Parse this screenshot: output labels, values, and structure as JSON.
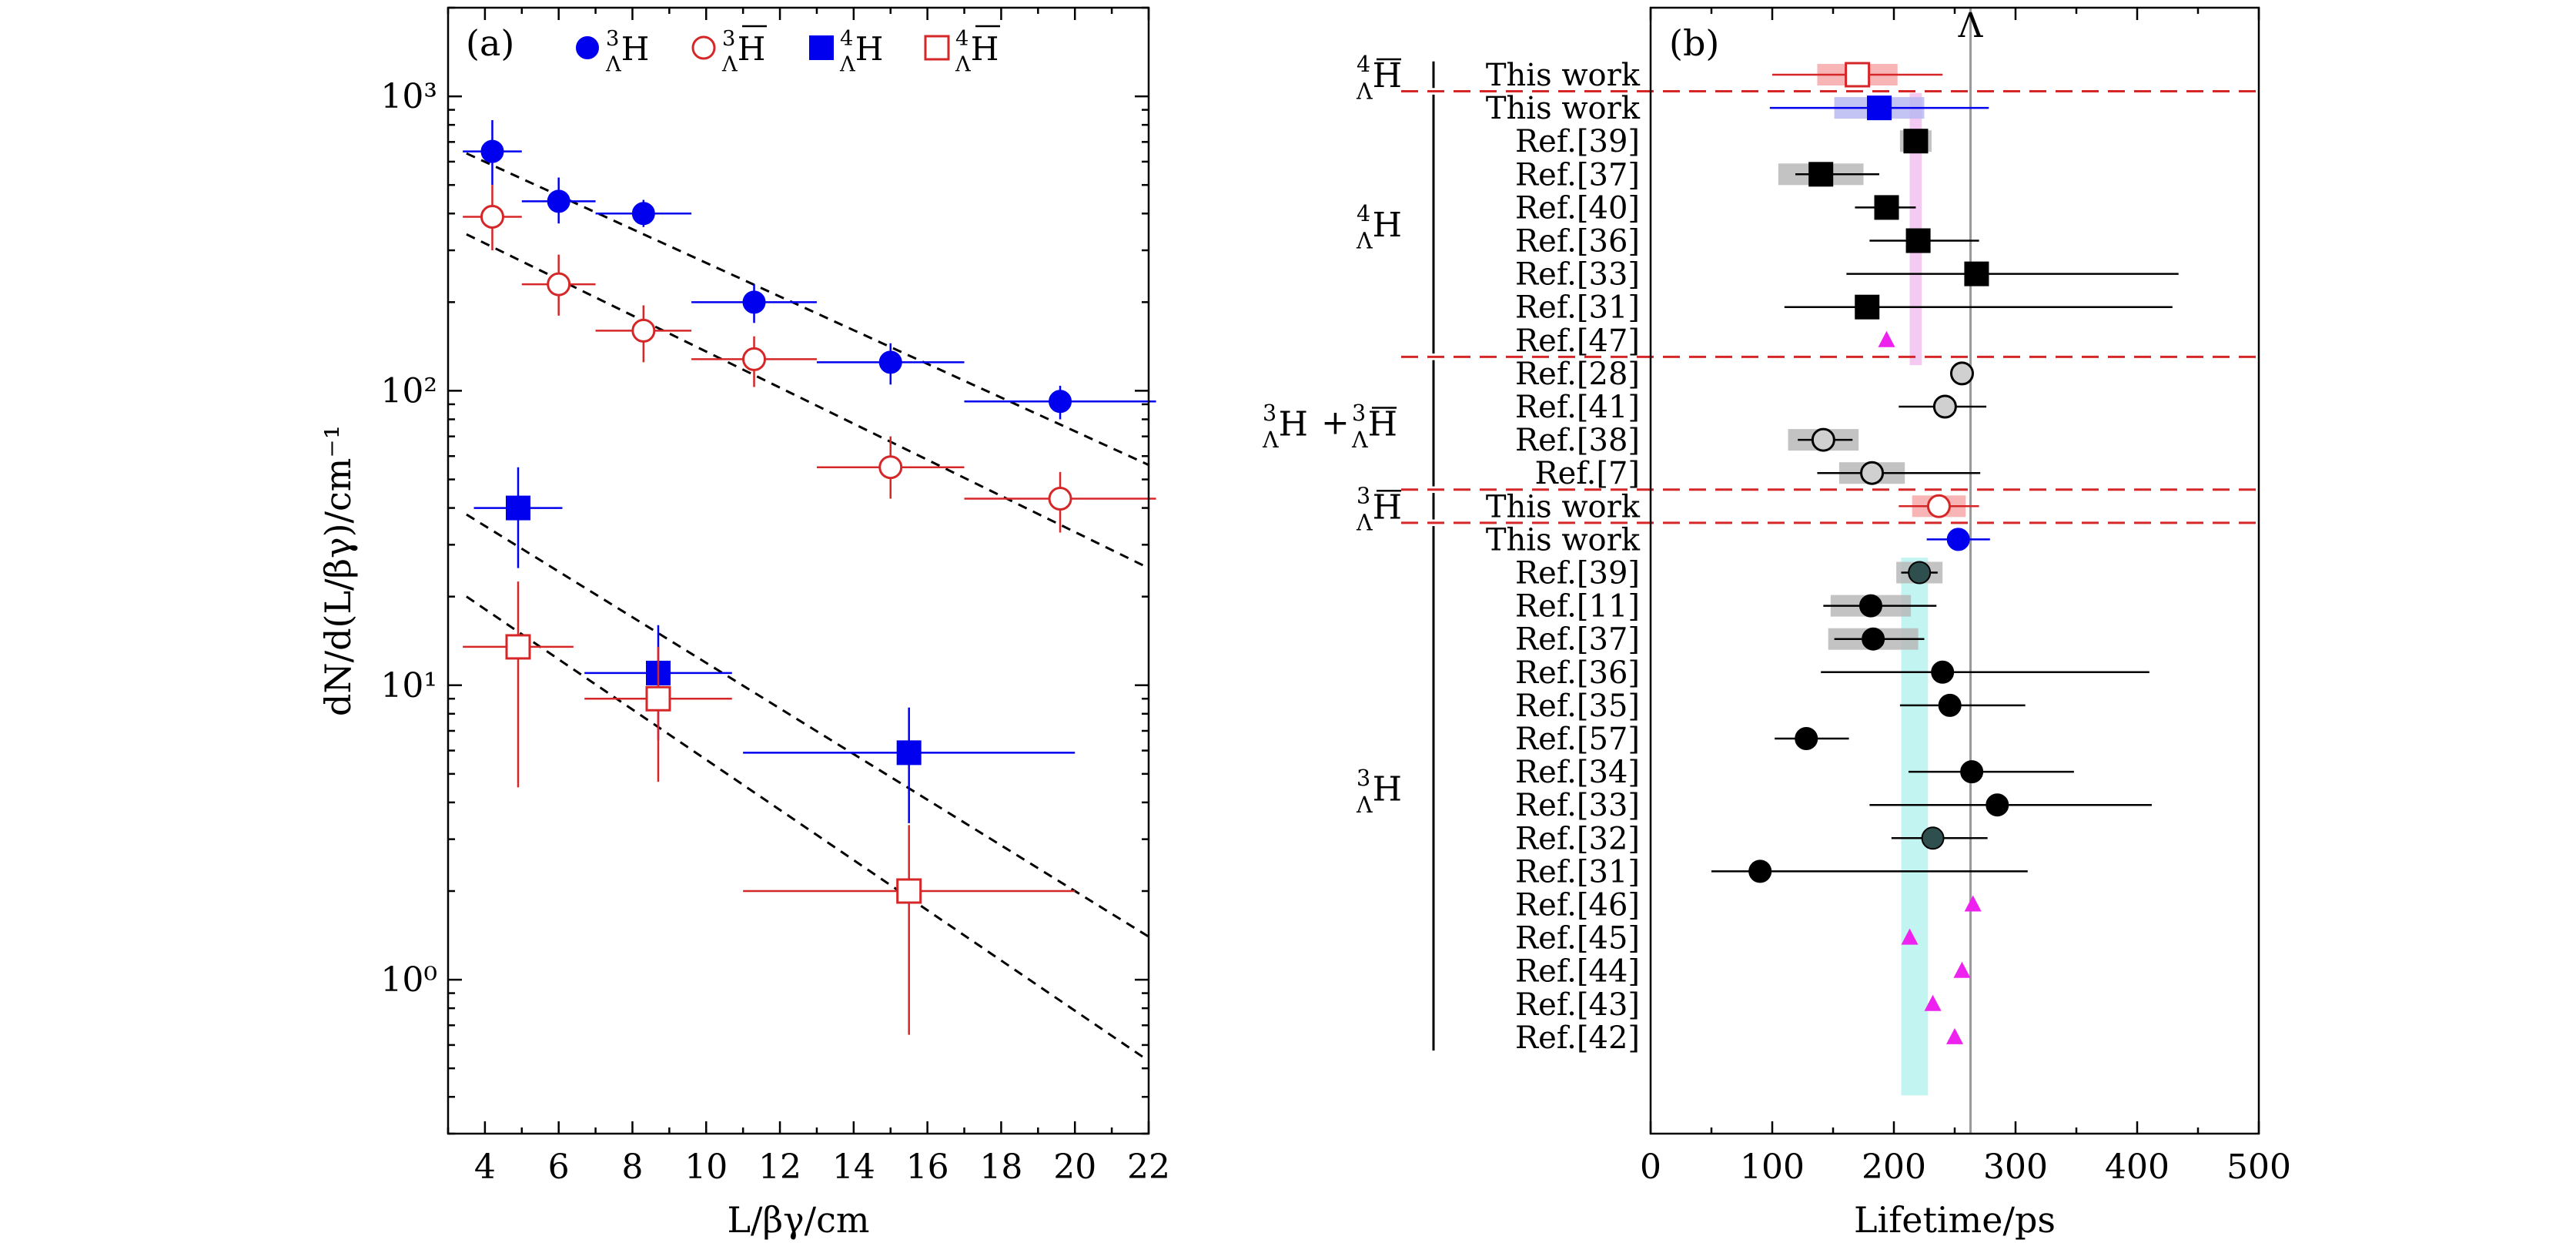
{
  "colors": {
    "h3": "#0000ee",
    "h3bar": "#d62728",
    "h4": "#0000ee",
    "h4bar": "#d62728",
    "ref": "#000000",
    "theory": "#ee22ee",
    "separator": "#d62728",
    "lambda_line": "#999999",
    "band_h3": "#aef2ee",
    "band_h4": "#f2b8ee"
  },
  "chart_data": [
    {
      "panel": "(a)",
      "type": "scatter",
      "xlabel": "L/βγ/cm",
      "ylabel": "dN/d(L/βγ)/cm⁻¹",
      "yscale": "log",
      "xlim": [
        3,
        22
      ],
      "ylim": [
        0.3,
        2000
      ],
      "xticks": [
        4,
        6,
        8,
        10,
        12,
        14,
        16,
        18,
        20,
        22
      ],
      "yticks": [
        {
          "value": 1,
          "label": "10⁰"
        },
        {
          "value": 10,
          "label": "10¹"
        },
        {
          "value": 100,
          "label": "10²"
        },
        {
          "value": 1000,
          "label": "10³"
        }
      ],
      "legend": {
        "position": "top",
        "entries": [
          {
            "key": "h3",
            "label": "ΛH",
            "sup": "3",
            "sub": "Λ",
            "base": "H",
            "bar": false,
            "marker": "filled-circle"
          },
          {
            "key": "h3bar",
            "label": "ΛH̄",
            "sup": "3",
            "sub": "Λ",
            "base": "H",
            "bar": true,
            "marker": "open-circle"
          },
          {
            "key": "h4",
            "label": "ΛH",
            "sup": "4",
            "sub": "Λ",
            "base": "H",
            "bar": false,
            "marker": "filled-square"
          },
          {
            "key": "h4bar",
            "label": "ΛH̄",
            "sup": "4",
            "sub": "Λ",
            "base": "H",
            "bar": true,
            "marker": "open-square"
          }
        ]
      },
      "series": [
        {
          "name": "3H_Lambda",
          "key": "h3",
          "marker": "filled-circle",
          "points": [
            {
              "x": 4.2,
              "y": 650,
              "xerr": 0.8,
              "yerr_lo": 150,
              "yerr_hi": 180
            },
            {
              "x": 6.0,
              "y": 440,
              "xerr": 1.0,
              "yerr_lo": 70,
              "yerr_hi": 90
            },
            {
              "x": 8.3,
              "y": 400,
              "xerr": 1.3,
              "yerr_lo": 40,
              "yerr_hi": 45
            },
            {
              "x": 11.3,
              "y": 200,
              "xerr": 1.7,
              "yerr_lo": 30,
              "yerr_hi": 30
            },
            {
              "x": 15.0,
              "y": 125,
              "xerr": 2.0,
              "yerr_lo": 20,
              "yerr_hi": 20
            },
            {
              "x": 19.6,
              "y": 92,
              "xerr": 2.6,
              "yerr_lo": 12,
              "yerr_hi": 12
            }
          ]
        },
        {
          "name": "anti-3H_Lambda",
          "key": "h3bar",
          "marker": "open-circle",
          "points": [
            {
              "x": 4.2,
              "y": 390,
              "xerr": 0.8,
              "yerr_lo": 90,
              "yerr_hi": 110
            },
            {
              "x": 6.0,
              "y": 230,
              "xerr": 1.0,
              "yerr_lo": 50,
              "yerr_hi": 60
            },
            {
              "x": 8.3,
              "y": 160,
              "xerr": 1.3,
              "yerr_lo": 35,
              "yerr_hi": 35
            },
            {
              "x": 11.3,
              "y": 128,
              "xerr": 1.7,
              "yerr_lo": 25,
              "yerr_hi": 25
            },
            {
              "x": 15.0,
              "y": 55,
              "xerr": 2.0,
              "yerr_lo": 12,
              "yerr_hi": 15
            },
            {
              "x": 19.6,
              "y": 43,
              "xerr": 2.6,
              "yerr_lo": 10,
              "yerr_hi": 10
            }
          ]
        },
        {
          "name": "4H_Lambda",
          "key": "h4",
          "marker": "filled-square",
          "points": [
            {
              "x": 4.9,
              "y": 40,
              "xerr": 1.2,
              "yerr_lo": 15,
              "yerr_hi": 15
            },
            {
              "x": 8.7,
              "y": 11,
              "xerr": 2.0,
              "yerr_lo": 4.5,
              "yerr_hi": 5
            },
            {
              "x": 15.5,
              "y": 5.9,
              "xerr": 4.5,
              "yerr_lo": 2.5,
              "yerr_hi": 2.5
            }
          ]
        },
        {
          "name": "anti-4H_Lambda",
          "key": "h4bar",
          "marker": "open-square",
          "points": [
            {
              "x": 4.9,
              "y": 13.5,
              "xerr": 1.5,
              "yerr_lo": 9,
              "yerr_hi": 9
            },
            {
              "x": 8.7,
              "y": 9,
              "xerr": 2.0,
              "yerr_lo": 4.3,
              "yerr_hi": 4.5
            },
            {
              "x": 15.5,
              "y": 2.0,
              "xerr": 4.5,
              "yerr_lo": 1.35,
              "yerr_hi": 1.35
            }
          ]
        }
      ],
      "fits": [
        {
          "x": [
            3.5,
            22
          ],
          "y": [
            640,
            56
          ]
        },
        {
          "x": [
            3.5,
            22
          ],
          "y": [
            340,
            25
          ]
        },
        {
          "x": [
            3.5,
            22
          ],
          "y": [
            38,
            1.4
          ]
        },
        {
          "x": [
            3.5,
            22
          ],
          "y": [
            20,
            0.53
          ]
        }
      ]
    },
    {
      "panel": "(b)",
      "type": "scatter",
      "xlabel": "Lifetime/ps",
      "xlim": [
        0,
        500
      ],
      "xticks": [
        0,
        100,
        200,
        300,
        400,
        500
      ],
      "lambda_lifetime": 263,
      "lambda_label": "Λ",
      "bands": [
        {
          "key": "band_h3",
          "from": 206,
          "to": 228,
          "rows": [
            15,
            31
          ]
        },
        {
          "key": "band_h4",
          "from": 213,
          "to": 223,
          "rows": [
            1,
            9
          ]
        }
      ],
      "groups": [
        {
          "label_sup": "4",
          "label_sub": "Λ",
          "label_base": "H",
          "bar": true,
          "rows": [
            0,
            0
          ]
        },
        {
          "label_sup": "4",
          "label_sub": "Λ",
          "label_base": "H",
          "bar": false,
          "rows": [
            1,
            8
          ]
        },
        {
          "label_sup": "3",
          "label_sub": "Λ",
          "label_base": "H",
          "bar": false,
          "plus": true,
          "rows": [
            9,
            12
          ]
        },
        {
          "label_sup": "3",
          "label_sub": "Λ",
          "label_base": "H",
          "bar": true,
          "rows": [
            13,
            13
          ]
        },
        {
          "label_sup": "3",
          "label_sub": "Λ",
          "label_base": "H",
          "bar": false,
          "rows": [
            14,
            29
          ]
        }
      ],
      "separators_after_rows": [
        0,
        8,
        12,
        13
      ],
      "rows": [
        {
          "label": "This work",
          "value": 170,
          "stat_lo": 70,
          "stat_hi": 70,
          "sys": 33,
          "marker": "open-square",
          "color": "h4bar"
        },
        {
          "label": "This work",
          "value": 188,
          "stat_lo": 90,
          "stat_hi": 90,
          "sys": 37,
          "marker": "filled-square",
          "color": "h4"
        },
        {
          "label": "Ref.[39]",
          "value": 218,
          "stat_lo": 6,
          "stat_hi": 6,
          "sys": 13,
          "marker": "filled-square",
          "color": "ref"
        },
        {
          "label": "Ref.[37]",
          "value": 140,
          "stat_lo": 21,
          "stat_hi": 48,
          "sys": 35,
          "marker": "filled-square",
          "color": "ref"
        },
        {
          "label": "Ref.[40]",
          "value": 194,
          "stat_lo": 26,
          "stat_hi": 24,
          "sys": 0,
          "marker": "filled-square",
          "color": "ref"
        },
        {
          "label": "Ref.[36]",
          "value": 220,
          "stat_lo": 40,
          "stat_hi": 50,
          "sys": 10,
          "marker": "filled-square",
          "color": "ref"
        },
        {
          "label": "Ref.[33]",
          "value": 268,
          "stat_lo": 107,
          "stat_hi": 166,
          "sys": 0,
          "marker": "filled-square",
          "color": "ref"
        },
        {
          "label": "Ref.[31]",
          "value": 178,
          "stat_lo": 68,
          "stat_hi": 251,
          "sys": 0,
          "marker": "filled-square",
          "color": "ref"
        },
        {
          "label": "Ref.[47]",
          "value": 194,
          "stat_lo": 0,
          "stat_hi": 0,
          "sys": 0,
          "marker": "triangle",
          "color": "theory"
        },
        {
          "label": "Ref.[28]",
          "value": 256,
          "stat_lo": 0,
          "stat_hi": 0,
          "sys": 0,
          "marker": "grey-circle",
          "color": "ref"
        },
        {
          "label": "Ref.[41]",
          "value": 242,
          "stat_lo": 38,
          "stat_hi": 34,
          "sys": 0,
          "marker": "grey-circle",
          "color": "ref"
        },
        {
          "label": "Ref.[38]",
          "value": 142,
          "stat_lo": 21,
          "stat_hi": 24,
          "sys": 29,
          "marker": "grey-circle",
          "color": "ref"
        },
        {
          "label": "Ref.[7]",
          "value": 182,
          "stat_lo": 45,
          "stat_hi": 89,
          "sys": 27,
          "marker": "grey-circle",
          "color": "ref"
        },
        {
          "label": "This work",
          "value": 237,
          "stat_lo": 33,
          "stat_hi": 33,
          "sys": 22,
          "marker": "open-circle",
          "color": "h3bar"
        },
        {
          "label": "This work",
          "value": 253,
          "stat_lo": 26,
          "stat_hi": 26,
          "sys": 4,
          "marker": "filled-circle",
          "color": "h3"
        },
        {
          "label": "Ref.[39]",
          "value": 221,
          "stat_lo": 15,
          "stat_hi": 15,
          "sys": 19,
          "marker": "dark-circle",
          "color": "ref"
        },
        {
          "label": "Ref.[11]",
          "value": 181,
          "stat_lo": 39,
          "stat_hi": 54,
          "sys": 33,
          "marker": "filled-circle",
          "color": "ref"
        },
        {
          "label": "Ref.[37]",
          "value": 183,
          "stat_lo": 32,
          "stat_hi": 42,
          "sys": 37,
          "marker": "filled-circle",
          "color": "ref"
        },
        {
          "label": "Ref.[36]",
          "value": 240,
          "stat_lo": 100,
          "stat_hi": 170,
          "sys": 0,
          "marker": "filled-circle",
          "color": "ref"
        },
        {
          "label": "Ref.[35]",
          "value": 246,
          "stat_lo": 41,
          "stat_hi": 62,
          "sys": 0,
          "marker": "filled-circle",
          "color": "ref"
        },
        {
          "label": "Ref.[57]",
          "value": 128,
          "stat_lo": 26,
          "stat_hi": 35,
          "sys": 0,
          "marker": "filled-circle",
          "color": "ref"
        },
        {
          "label": "Ref.[34]",
          "value": 264,
          "stat_lo": 52,
          "stat_hi": 84,
          "sys": 0,
          "marker": "filled-circle",
          "color": "ref"
        },
        {
          "label": "Ref.[33]",
          "value": 285,
          "stat_lo": 105,
          "stat_hi": 127,
          "sys": 0,
          "marker": "filled-circle",
          "color": "ref"
        },
        {
          "label": "Ref.[32]",
          "value": 232,
          "stat_lo": 34,
          "stat_hi": 45,
          "sys": 0,
          "marker": "dark-circle",
          "color": "ref"
        },
        {
          "label": "Ref.[31]",
          "value": 90,
          "stat_lo": 40,
          "stat_hi": 220,
          "sys": 0,
          "marker": "filled-circle",
          "color": "ref"
        },
        {
          "label": "Ref.[46]",
          "value": 265,
          "stat_lo": 0,
          "stat_hi": 0,
          "sys": 0,
          "marker": "triangle",
          "color": "theory"
        },
        {
          "label": "Ref.[45]",
          "value": 213,
          "stat_lo": 0,
          "stat_hi": 0,
          "sys": 0,
          "marker": "triangle",
          "color": "theory"
        },
        {
          "label": "Ref.[44]",
          "value": 256,
          "stat_lo": 0,
          "stat_hi": 0,
          "sys": 0,
          "marker": "triangle",
          "color": "theory"
        },
        {
          "label": "Ref.[43]",
          "value": 232,
          "stat_lo": 0,
          "stat_hi": 0,
          "sys": 0,
          "marker": "triangle",
          "color": "theory"
        },
        {
          "label": "Ref.[42]",
          "value": 250,
          "stat_lo": 0,
          "stat_hi": 0,
          "sys": 0,
          "marker": "triangle",
          "color": "theory"
        }
      ]
    }
  ]
}
